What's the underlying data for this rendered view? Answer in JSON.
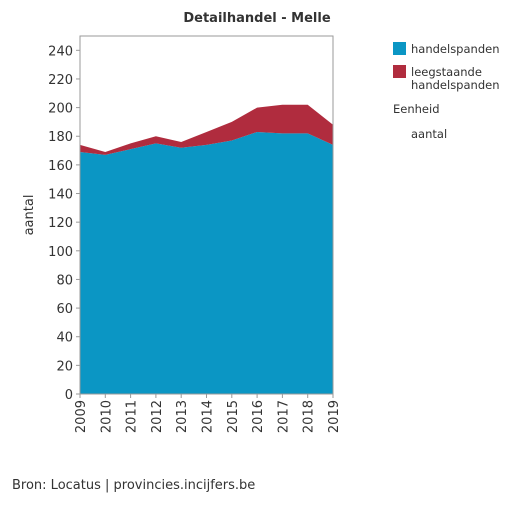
{
  "chart_data": {
    "type": "area",
    "stacked": true,
    "title": "Detailhandel - Melle",
    "xlabel": "",
    "ylabel": "aantal",
    "x": [
      "2009",
      "2010",
      "2011",
      "2012",
      "2013",
      "2014",
      "2015",
      "2016",
      "2017",
      "2018",
      "2019"
    ],
    "ylim": [
      0,
      250
    ],
    "yticks": [
      0,
      20,
      40,
      60,
      80,
      100,
      120,
      140,
      160,
      180,
      200,
      220,
      240
    ],
    "grid": false,
    "legend_position": "right",
    "series": [
      {
        "name": "handelspanden",
        "color": "#0b96c4",
        "values": [
          169,
          167,
          171,
          175,
          172,
          174,
          177,
          183,
          182,
          182,
          174
        ]
      },
      {
        "name": "leegstaande handelspanden",
        "label_lines": [
          "leegstaande",
          "handelspanden"
        ],
        "color": "#b02c3e",
        "values": [
          5,
          2,
          4,
          5,
          4,
          9,
          13,
          17,
          20,
          20,
          14
        ]
      }
    ],
    "legend_extra": {
      "heading": "Eenheid",
      "value": "aantal"
    }
  },
  "source_text": "Bron: Locatus | provincies.incijfers.be"
}
